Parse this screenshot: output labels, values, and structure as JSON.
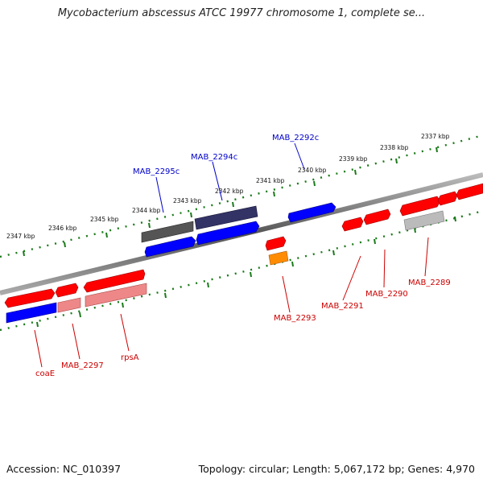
{
  "title": "Mycobacterium abscessus ATCC 19977 chromosome 1, complete se...",
  "footer": {
    "accession": "Accession: NC_010397",
    "topology": "Topology: circular; Length: 5,067,172 bp; Genes: 4,970"
  },
  "colors": {
    "forward": "#ff0000",
    "reverse": "#0000ff",
    "backbone": "#888888",
    "ticks": "#1a7a1a",
    "label_red": "#cc0000",
    "label_blue": "#0000cc"
  },
  "scale": {
    "upper": [
      {
        "label": "2337 kbp",
        "kbp": 2337
      },
      {
        "label": "2338 kbp",
        "kbp": 2338
      },
      {
        "label": "2339 kbp",
        "kbp": 2339
      },
      {
        "label": "2340 kbp",
        "kbp": 2340
      },
      {
        "label": "2341 kbp",
        "kbp": 2341
      },
      {
        "label": "2342 kbp",
        "kbp": 2342
      },
      {
        "label": "2343 kbp",
        "kbp": 2343
      },
      {
        "label": "2344 kbp",
        "kbp": 2344
      },
      {
        "label": "2345 kbp",
        "kbp": 2345
      },
      {
        "label": "2346 kbp",
        "kbp": 2346
      },
      {
        "label": "2347 kbp",
        "kbp": 2347
      }
    ]
  },
  "genes": [
    {
      "name": "coaE",
      "strand": "forward",
      "color": "#ff0000"
    },
    {
      "name": "MAB_2297",
      "strand": "forward",
      "color": "#ff0000"
    },
    {
      "name": "rpsA",
      "strand": "forward",
      "color": "#ff0000"
    },
    {
      "name": "MAB_2295c",
      "strand": "reverse",
      "color": "#0000ff"
    },
    {
      "name": "MAB_2294c",
      "strand": "reverse",
      "color": "#0000ff"
    },
    {
      "name": "MAB_2293",
      "strand": "forward",
      "color": "#ff0000"
    },
    {
      "name": "MAB_2292c",
      "strand": "reverse",
      "color": "#0000ff"
    },
    {
      "name": "MAB_2291",
      "strand": "forward",
      "color": "#ff0000"
    },
    {
      "name": "MAB_2290",
      "strand": "forward",
      "color": "#ff0000"
    },
    {
      "name": "MAB_2289",
      "strand": "forward",
      "color": "#ff0000"
    }
  ]
}
